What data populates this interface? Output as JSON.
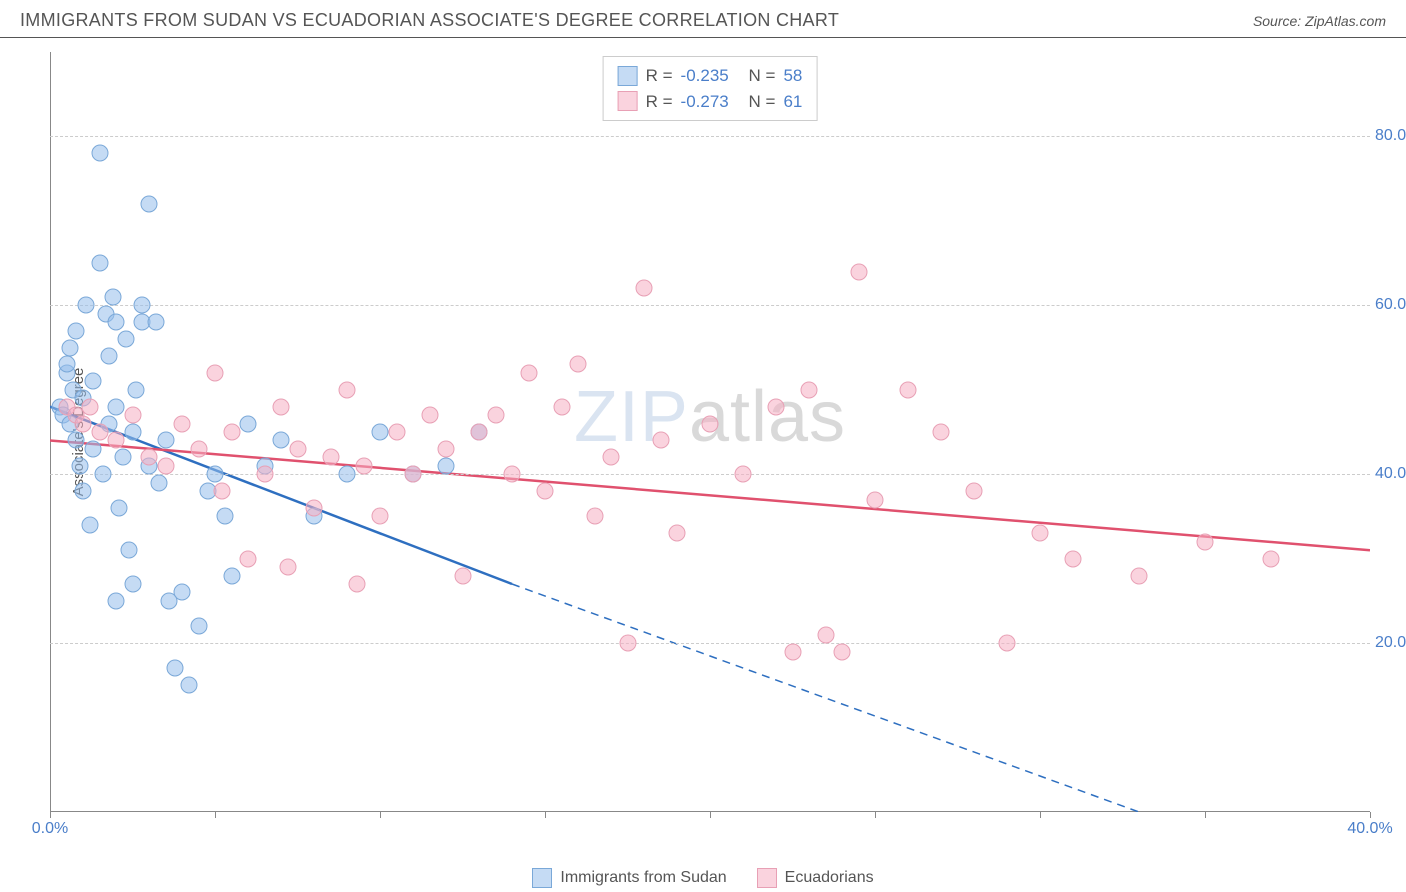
{
  "title": "IMMIGRANTS FROM SUDAN VS ECUADORIAN ASSOCIATE'S DEGREE CORRELATION CHART",
  "source": "Source: ZipAtlas.com",
  "watermark_bold": "ZIP",
  "watermark_thin": "atlas",
  "y_axis_title": "Associate's Degree",
  "chart": {
    "type": "scatter",
    "xlim": [
      0,
      40
    ],
    "ylim": [
      0,
      90
    ],
    "x_ticks": [
      0,
      5,
      10,
      15,
      20,
      25,
      30,
      35,
      40
    ],
    "x_tick_labels": {
      "0": "0.0%",
      "40": "40.0%"
    },
    "y_ticks": [
      20,
      40,
      60,
      80
    ],
    "y_tick_labels": {
      "20": "20.0%",
      "40": "40.0%",
      "60": "60.0%",
      "80": "80.0%"
    },
    "grid_color": "#cccccc",
    "background_color": "#ffffff",
    "axis_color": "#888888",
    "label_color": "#4a7ec9",
    "label_fontsize": 16,
    "marker_size": 17,
    "series": [
      {
        "name": "Immigrants from Sudan",
        "marker_fill": "rgba(150,190,235,0.55)",
        "marker_stroke": "#7aa8d8",
        "line_color": "#2e6fc0",
        "line_width": 2.5,
        "R": "-0.235",
        "N": "58",
        "trend": {
          "x1": 0,
          "y1": 48,
          "x2_solid": 14,
          "y2_solid": 27,
          "x2_dash": 33,
          "y2_dash": 0
        },
        "points": [
          [
            0.3,
            48
          ],
          [
            0.4,
            47
          ],
          [
            0.5,
            52
          ],
          [
            0.5,
            53
          ],
          [
            0.6,
            46
          ],
          [
            0.6,
            55
          ],
          [
            0.7,
            50
          ],
          [
            0.8,
            57
          ],
          [
            0.8,
            44
          ],
          [
            0.9,
            41
          ],
          [
            1.0,
            49
          ],
          [
            1.0,
            38
          ],
          [
            1.1,
            60
          ],
          [
            1.2,
            34
          ],
          [
            1.3,
            43
          ],
          [
            1.3,
            51
          ],
          [
            1.5,
            78
          ],
          [
            1.5,
            65
          ],
          [
            1.6,
            40
          ],
          [
            1.7,
            59
          ],
          [
            1.8,
            54
          ],
          [
            1.8,
            46
          ],
          [
            1.9,
            61
          ],
          [
            2.0,
            58
          ],
          [
            2.0,
            48
          ],
          [
            2.1,
            36
          ],
          [
            2.2,
            42
          ],
          [
            2.3,
            56
          ],
          [
            2.4,
            31
          ],
          [
            2.5,
            45
          ],
          [
            2.5,
            27
          ],
          [
            2.6,
            50
          ],
          [
            2.8,
            58
          ],
          [
            2.8,
            60
          ],
          [
            3.0,
            72
          ],
          [
            3.0,
            41
          ],
          [
            3.2,
            58
          ],
          [
            3.3,
            39
          ],
          [
            3.5,
            44
          ],
          [
            3.6,
            25
          ],
          [
            3.8,
            17
          ],
          [
            4.0,
            26
          ],
          [
            4.2,
            15
          ],
          [
            4.5,
            22
          ],
          [
            4.8,
            38
          ],
          [
            5.0,
            40
          ],
          [
            5.3,
            35
          ],
          [
            5.5,
            28
          ],
          [
            6.0,
            46
          ],
          [
            6.5,
            41
          ],
          [
            7.0,
            44
          ],
          [
            8.0,
            35
          ],
          [
            9.0,
            40
          ],
          [
            10.0,
            45
          ],
          [
            11.0,
            40
          ],
          [
            12.0,
            41
          ],
          [
            13.0,
            45
          ],
          [
            2.0,
            25
          ]
        ]
      },
      {
        "name": "Ecuadorians",
        "marker_fill": "rgba(245,175,195,0.55)",
        "marker_stroke": "#e8a0b5",
        "line_color": "#e0516e",
        "line_width": 2.5,
        "R": "-0.273",
        "N": "61",
        "trend": {
          "x1": 0,
          "y1": 44,
          "x2_solid": 40,
          "y2_solid": 31,
          "x2_dash": 40,
          "y2_dash": 31
        },
        "points": [
          [
            0.5,
            48
          ],
          [
            0.8,
            47
          ],
          [
            1.0,
            46
          ],
          [
            1.2,
            48
          ],
          [
            1.5,
            45
          ],
          [
            2.0,
            44
          ],
          [
            2.5,
            47
          ],
          [
            3.0,
            42
          ],
          [
            3.5,
            41
          ],
          [
            4.0,
            46
          ],
          [
            4.5,
            43
          ],
          [
            5.0,
            52
          ],
          [
            5.2,
            38
          ],
          [
            5.5,
            45
          ],
          [
            6.0,
            30
          ],
          [
            6.5,
            40
          ],
          [
            7.0,
            48
          ],
          [
            7.2,
            29
          ],
          [
            7.5,
            43
          ],
          [
            8.0,
            36
          ],
          [
            8.5,
            42
          ],
          [
            9.0,
            50
          ],
          [
            9.3,
            27
          ],
          [
            9.5,
            41
          ],
          [
            10.0,
            35
          ],
          [
            10.5,
            45
          ],
          [
            11.0,
            40
          ],
          [
            11.5,
            47
          ],
          [
            12.0,
            43
          ],
          [
            12.5,
            28
          ],
          [
            13.0,
            45
          ],
          [
            13.5,
            47
          ],
          [
            14.0,
            40
          ],
          [
            14.5,
            52
          ],
          [
            15.0,
            38
          ],
          [
            15.5,
            48
          ],
          [
            16.0,
            53
          ],
          [
            16.5,
            35
          ],
          [
            17.0,
            42
          ],
          [
            17.5,
            20
          ],
          [
            18.0,
            62
          ],
          [
            18.5,
            44
          ],
          [
            19.0,
            33
          ],
          [
            20.0,
            46
          ],
          [
            21.0,
            40
          ],
          [
            22.0,
            48
          ],
          [
            22.5,
            19
          ],
          [
            23.0,
            50
          ],
          [
            23.5,
            21
          ],
          [
            24.0,
            19
          ],
          [
            24.5,
            64
          ],
          [
            25.0,
            37
          ],
          [
            26.0,
            50
          ],
          [
            27.0,
            45
          ],
          [
            28.0,
            38
          ],
          [
            29.0,
            20
          ],
          [
            30.0,
            33
          ],
          [
            31.0,
            30
          ],
          [
            33.0,
            28
          ],
          [
            35.0,
            32
          ],
          [
            37.0,
            30
          ]
        ]
      }
    ]
  },
  "legend_top": {
    "R_label": "R =",
    "N_label": "N ="
  },
  "legend_bottom": [
    {
      "label": "Immigrants from Sudan",
      "fill": "rgba(150,190,235,0.55)",
      "stroke": "#7aa8d8"
    },
    {
      "label": "Ecuadorians",
      "fill": "rgba(245,175,195,0.55)",
      "stroke": "#e8a0b5"
    }
  ]
}
